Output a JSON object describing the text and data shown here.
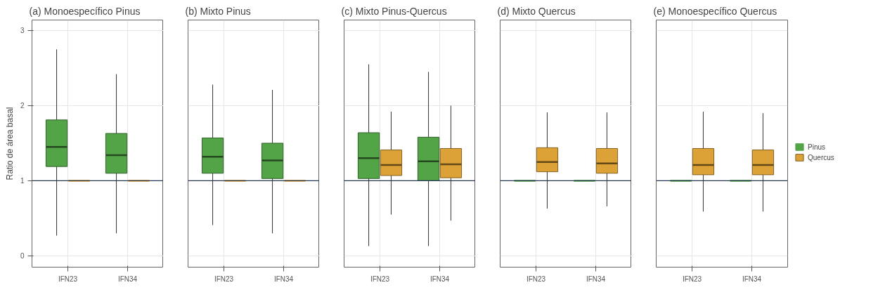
{
  "chart_data": [
    {
      "type": "box",
      "title": "(a) Monoespecífico Pinus",
      "ylabel": "Ratio de área basal",
      "categories": [
        "IFN23",
        "IFN34"
      ],
      "ylim": [
        -0.15,
        3.14
      ],
      "yticks": [
        0,
        1,
        2,
        3
      ],
      "grid": true,
      "ref_lines": [
        {
          "axis": "y",
          "value": 1
        }
      ],
      "series": [
        {
          "color": "#52a447",
          "boxes": [
            {
              "low": 0.27,
              "q1": 1.19,
              "median": 1.45,
              "q3": 1.81,
              "high": 2.75
            },
            {
              "low": 0.3,
              "q1": 1.1,
              "median": 1.34,
              "q3": 1.63,
              "high": 2.42
            }
          ]
        },
        {
          "color": "#dca237",
          "boxes": [
            {
              "low": 1,
              "q1": 1,
              "median": 1,
              "q3": 1,
              "high": 1
            },
            {
              "low": 1,
              "q1": 1,
              "median": 1,
              "q3": 1,
              "high": 1
            }
          ]
        }
      ]
    },
    {
      "type": "box",
      "title": "(b) Mixto Pinus",
      "categories": [
        "IFN23",
        "IFN34"
      ],
      "ylim": [
        -0.15,
        3.14
      ],
      "yticks": [
        0,
        1,
        2,
        3
      ],
      "grid": true,
      "tick_labels": "x",
      "ref_lines": [
        {
          "axis": "y",
          "value": 1
        }
      ],
      "series": [
        {
          "color": "#52a447",
          "boxes": [
            {
              "low": 0.41,
              "q1": 1.1,
              "median": 1.32,
              "q3": 1.57,
              "high": 2.28
            },
            {
              "low": 0.3,
              "q1": 1.03,
              "median": 1.27,
              "q3": 1.5,
              "high": 2.21
            }
          ]
        },
        {
          "color": "#dca237",
          "boxes": [
            {
              "low": 1,
              "q1": 1,
              "median": 1,
              "q3": 1,
              "high": 1
            },
            {
              "low": 1,
              "q1": 1,
              "median": 1,
              "q3": 1,
              "high": 1
            }
          ]
        }
      ]
    },
    {
      "type": "box",
      "title": "(c) Mixto Pinus-Quercus",
      "categories": [
        "IFN23",
        "IFN34"
      ],
      "ylim": [
        -0.15,
        3.14
      ],
      "yticks": [
        0,
        1,
        2,
        3
      ],
      "grid": true,
      "tick_labels": "x",
      "ref_lines": [
        {
          "axis": "y",
          "value": 1
        }
      ],
      "series": [
        {
          "color": "#52a447",
          "boxes": [
            {
              "low": 0.13,
              "q1": 1.03,
              "median": 1.3,
              "q3": 1.64,
              "high": 2.55
            },
            {
              "low": 0.13,
              "q1": 1.0,
              "median": 1.26,
              "q3": 1.58,
              "high": 2.45
            }
          ]
        },
        {
          "color": "#dca237",
          "boxes": [
            {
              "low": 0.55,
              "q1": 1.07,
              "median": 1.21,
              "q3": 1.41,
              "high": 1.92
            },
            {
              "low": 0.47,
              "q1": 1.04,
              "median": 1.22,
              "q3": 1.43,
              "high": 2.0
            }
          ]
        }
      ]
    },
    {
      "type": "box",
      "title": "(d) Mixto Quercus",
      "categories": [
        "IFN23",
        "IFN34"
      ],
      "ylim": [
        -0.15,
        3.14
      ],
      "yticks": [
        0,
        1,
        2,
        3
      ],
      "grid": true,
      "tick_labels": "x",
      "ref_lines": [
        {
          "axis": "y",
          "value": 1
        }
      ],
      "series": [
        {
          "color": "#52a447",
          "boxes": [
            {
              "low": 1,
              "q1": 1,
              "median": 1,
              "q3": 1,
              "high": 1
            },
            {
              "low": 1,
              "q1": 1,
              "median": 1,
              "q3": 1,
              "high": 1
            }
          ]
        },
        {
          "color": "#dca237",
          "boxes": [
            {
              "low": 0.63,
              "q1": 1.12,
              "median": 1.25,
              "q3": 1.44,
              "high": 1.91
            },
            {
              "low": 0.66,
              "q1": 1.1,
              "median": 1.23,
              "q3": 1.43,
              "high": 1.91
            }
          ]
        }
      ]
    },
    {
      "type": "box",
      "title": "(e) Monoespecífico Quercus",
      "categories": [
        "IFN23",
        "IFN34"
      ],
      "ylim": [
        -0.15,
        3.14
      ],
      "yticks": [
        0,
        1,
        2,
        3
      ],
      "grid": true,
      "tick_labels": "x",
      "legend": "right",
      "ref_lines": [
        {
          "axis": "y",
          "value": 1
        }
      ],
      "series": [
        {
          "name": "Pinus",
          "color": "#52a447",
          "boxes": [
            {
              "low": 1,
              "q1": 1,
              "median": 1,
              "q3": 1,
              "high": 1
            },
            {
              "low": 1,
              "q1": 1,
              "median": 1,
              "q3": 1,
              "high": 1
            }
          ]
        },
        {
          "name": "Quercus",
          "color": "#dca237",
          "boxes": [
            {
              "low": 0.59,
              "q1": 1.08,
              "median": 1.21,
              "q3": 1.43,
              "high": 1.92
            },
            {
              "low": 0.59,
              "q1": 1.08,
              "median": 1.21,
              "q3": 1.41,
              "high": 1.9
            }
          ]
        }
      ]
    }
  ]
}
